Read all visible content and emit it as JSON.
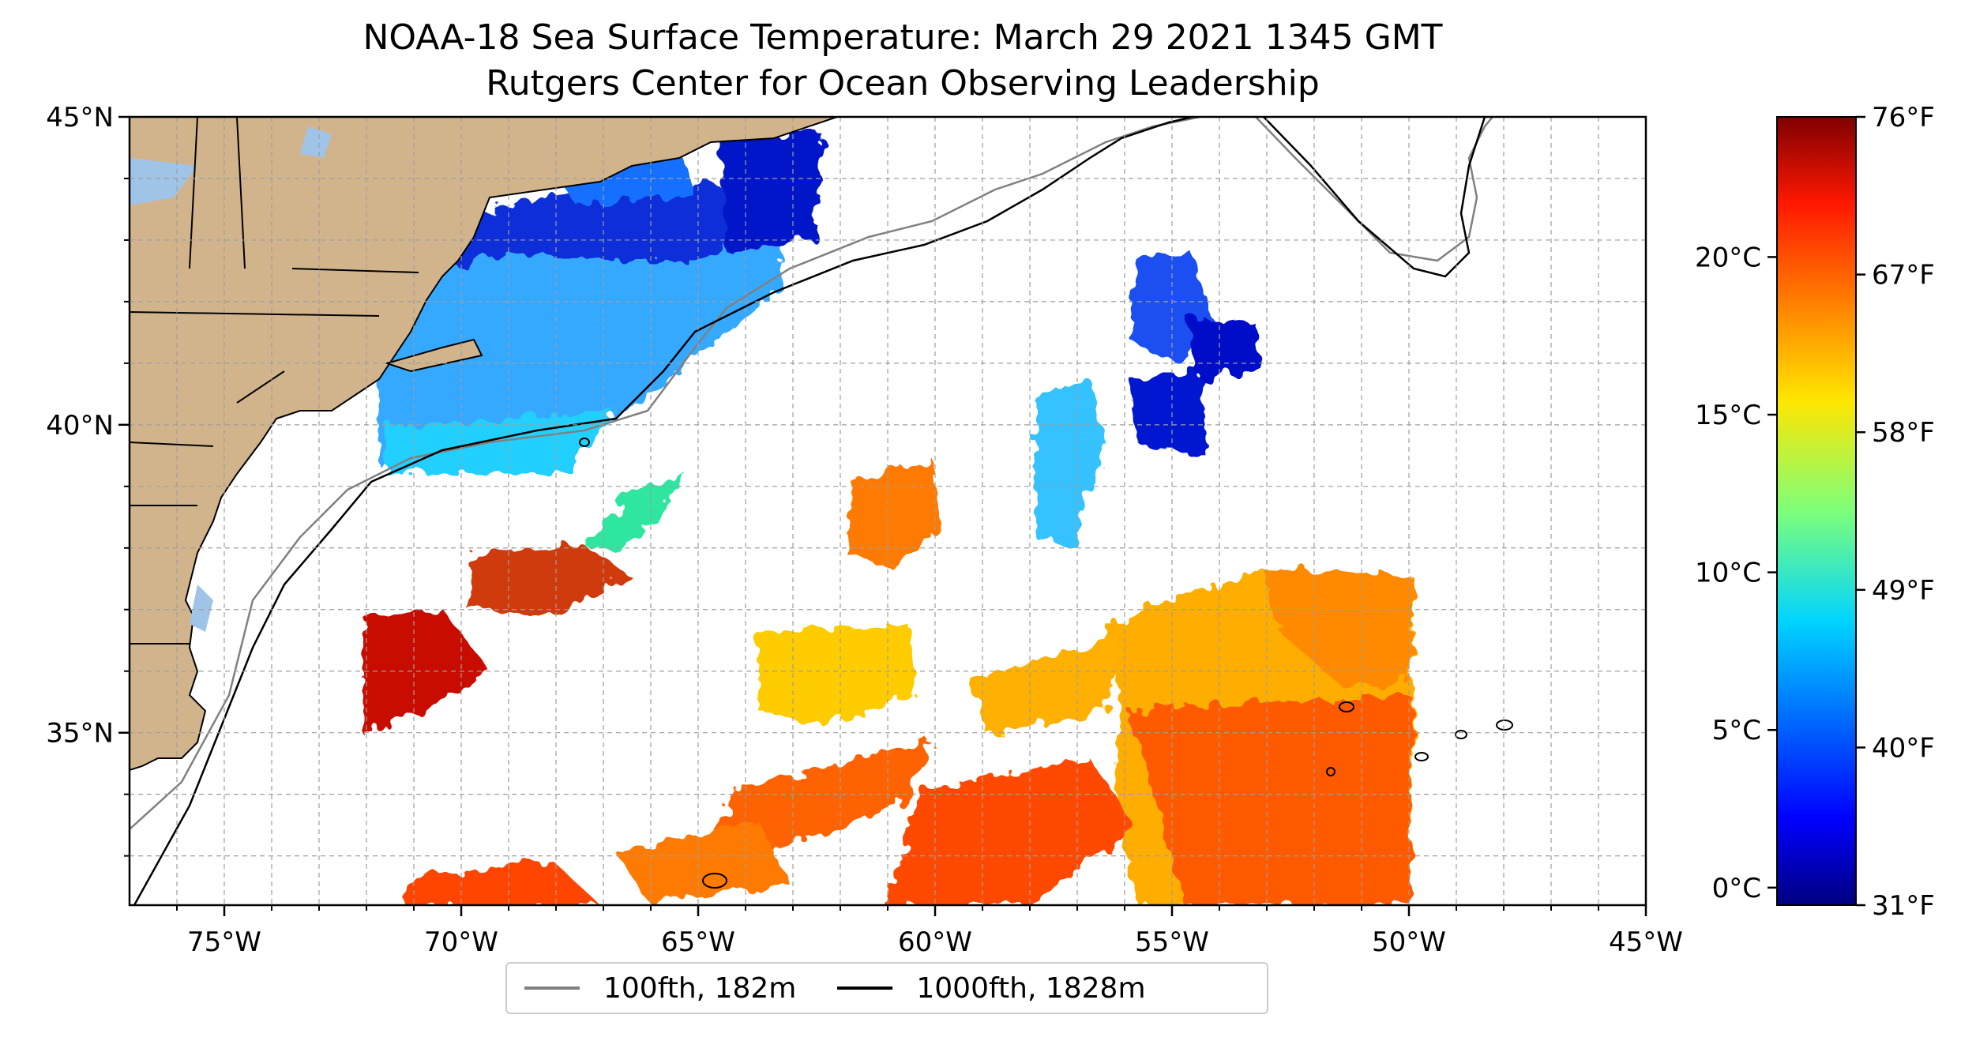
{
  "title": {
    "line1": "NOAA-18 Sea Surface Temperature: March 29 2021 1345 GMT",
    "line2": "Rutgers Center for Ocean Observing Leadership"
  },
  "map": {
    "lon_range": [
      -77,
      -45
    ],
    "lat_range": [
      32.2,
      45
    ],
    "lat_ticks": [
      {
        "value": 45,
        "label": "45°N"
      },
      {
        "value": 40,
        "label": "40°N"
      },
      {
        "value": 35,
        "label": "35°N"
      }
    ],
    "lon_ticks": [
      {
        "value": -75,
        "label": "75°W"
      },
      {
        "value": -70,
        "label": "70°W"
      },
      {
        "value": -65,
        "label": "65°W"
      },
      {
        "value": -60,
        "label": "60°W"
      },
      {
        "value": -55,
        "label": "55°W"
      },
      {
        "value": -50,
        "label": "50°W"
      },
      {
        "value": -45,
        "label": "45°W"
      }
    ],
    "grid": true,
    "land_color": "#d2b48c",
    "lake_color": "#9fc4e8"
  },
  "legend": {
    "items": [
      {
        "label": "100fth, 182m",
        "color": "#808080"
      },
      {
        "label": "1000fth, 1828m",
        "color": "#000000"
      }
    ]
  },
  "colorbar": {
    "colormap": "jet",
    "fahrenheit_range": [
      31,
      76
    ],
    "celsius_ticks": [
      {
        "value": 20,
        "label": "20°C"
      },
      {
        "value": 15,
        "label": "15°C"
      },
      {
        "value": 10,
        "label": "10°C"
      },
      {
        "value": 5,
        "label": "5°C"
      },
      {
        "value": 0,
        "label": "0°C"
      }
    ],
    "fahrenheit_ticks": [
      {
        "value": 76,
        "label": "76°F"
      },
      {
        "value": 67,
        "label": "67°F"
      },
      {
        "value": 58,
        "label": "58°F"
      },
      {
        "value": 49,
        "label": "49°F"
      },
      {
        "value": 40,
        "label": "40°F"
      },
      {
        "value": 31,
        "label": "31°F"
      }
    ]
  }
}
